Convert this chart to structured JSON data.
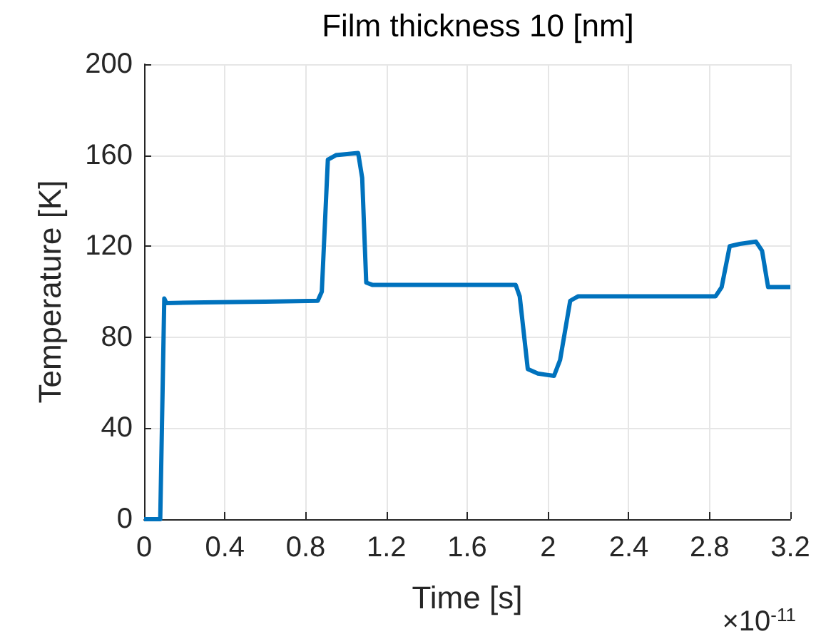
{
  "chart_data": {
    "type": "line",
    "title": "Film thickness 10 [nm]",
    "xlabel": "Time [s]",
    "ylabel": "Temperature [K]",
    "annotations": [
      "×10$^{-11}$"
    ],
    "x": [
      0,
      0.08,
      0.1,
      0.11,
      0.3,
      0.6,
      0.86,
      0.88,
      0.91,
      0.95,
      1.06,
      1.08,
      1.1,
      1.13,
      1.5,
      1.84,
      1.86,
      1.9,
      1.95,
      2.03,
      2.06,
      2.11,
      2.15,
      2.5,
      2.83,
      2.86,
      2.9,
      2.95,
      3.03,
      3.06,
      3.09,
      3.2
    ],
    "series": [
      {
        "color": "#0072bd",
        "values": [
          0,
          0,
          97,
          95,
          95.3,
          95.6,
          96,
          100,
          158,
          160,
          161,
          150,
          104,
          103,
          103,
          103,
          98,
          66,
          64,
          63,
          70,
          96,
          98,
          98,
          98,
          102,
          120,
          121,
          122,
          118,
          102,
          102
        ]
      }
    ],
    "xlim": [
      0,
      3.2
    ],
    "ylim": [
      0,
      200
    ],
    "xticks": [
      0,
      0.4,
      0.8,
      1.2,
      1.6,
      2,
      2.4,
      2.8,
      3.2
    ],
    "yticks": [
      0,
      40,
      80,
      120,
      160,
      200
    ],
    "grid": true,
    "marker": "none",
    "line_style": "solid"
  }
}
